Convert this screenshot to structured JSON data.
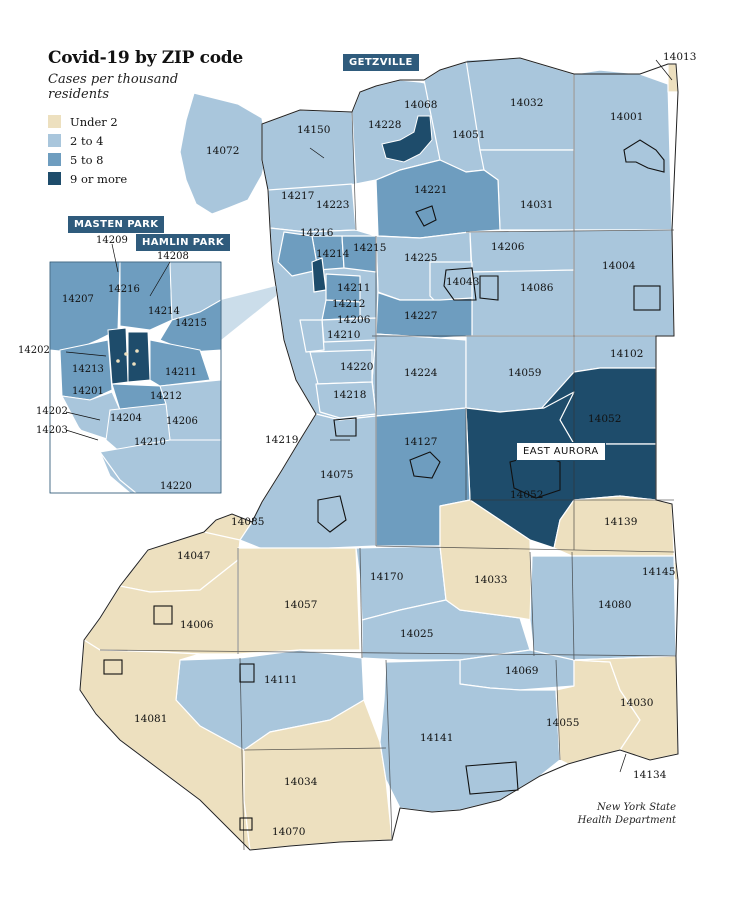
{
  "title": "Covid-19 by ZIP code",
  "subtitle": "Cases per thousand residents",
  "legend": [
    {
      "label": "Under 2",
      "color": "#ede0bf"
    },
    {
      "label": "2 to 4",
      "color": "#a9c6dc"
    },
    {
      "label": "5 to 8",
      "color": "#6e9dbf"
    },
    {
      "label": "9 or more",
      "color": "#1e4c6b"
    }
  ],
  "places": {
    "getzville": "GETZVILLE",
    "masten_park": "MASTEN PARK",
    "hamlin_park": "HAMLIN PARK",
    "east_aurora": "EAST AURORA"
  },
  "zips": {
    "z14013": "14013",
    "z14068": "14068",
    "z14032": "14032",
    "z14228": "14228",
    "z14001": "14001",
    "z14051": "14051",
    "z14150": "14150",
    "z14072": "14072",
    "z14221": "14221",
    "z14031": "14031",
    "z14217": "14217",
    "z14223": "14223",
    "z14216": "14216",
    "z14215": "14215",
    "z14206": "14206",
    "z14225": "14225",
    "z14004": "14004",
    "z14214": "14214",
    "z14043": "14043",
    "z14211": "14211",
    "z14086": "14086",
    "z14212": "14212",
    "z14206b": "14206",
    "z14227": "14227",
    "z14210": "14210",
    "z14102": "14102",
    "z14220": "14220",
    "z14224": "14224",
    "z14059": "14059",
    "z14218": "14218",
    "z14052a": "14052",
    "z14219": "14219",
    "z14127": "14127",
    "z14075": "14075",
    "z14052b": "14052",
    "z14085": "14085",
    "z14139": "14139",
    "z14047": "14047",
    "z14145": "14145",
    "z14170": "14170",
    "z14033": "14033",
    "z14057": "14057",
    "z14080": "14080",
    "z14006": "14006",
    "z14025": "14025",
    "z14069": "14069",
    "z14111": "14111",
    "z14030": "14030",
    "z14081": "14081",
    "z14055": "14055",
    "z14141": "14141",
    "z14134": "14134",
    "z14034": "14034",
    "z14070": "14070"
  },
  "inset_zips": {
    "i14209": "14209",
    "i14208": "14208",
    "i14216": "14216",
    "i14207": "14207",
    "i14214": "14214",
    "i14215": "14215",
    "i14202a": "14202",
    "i14213": "14213",
    "i14211": "14211",
    "i14201": "14201",
    "i14212": "14212",
    "i14202b": "14202",
    "i14204": "14204",
    "i14206": "14206",
    "i14203": "14203",
    "i14210": "14210",
    "i14220": "14220"
  },
  "source": [
    "New York State",
    "Health Department"
  ]
}
